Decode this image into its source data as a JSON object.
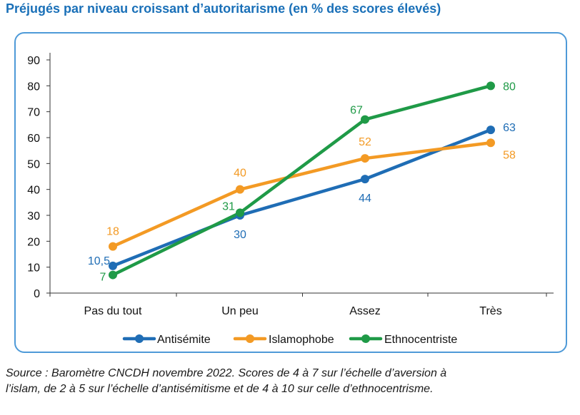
{
  "title": "Préjugés par niveau croissant d’autoritarisme (en % des scores élevés)",
  "source": {
    "line1": "Source : Baromètre CNCDH novembre 2022. Scores de 4 à 7 sur l’échelle d’aversion à",
    "line2": "l’islam, de 2 à 5 sur l’échelle d’antisémitisme et de 4 à 10 sur celle d’ethnocentrisme."
  },
  "chart_data": {
    "type": "line",
    "title": "Préjugés par niveau croissant d’autoritarisme (en % des scores élevés)",
    "categories": [
      "Pas du tout",
      "Un peu",
      "Assez",
      "Très"
    ],
    "ylim": [
      0,
      90
    ],
    "yticks": [
      0,
      10,
      20,
      30,
      40,
      50,
      60,
      70,
      80,
      90
    ],
    "grid": false,
    "legend_position": "bottom",
    "series": [
      {
        "name": "Antisémite",
        "color": "#1f6db5",
        "values": [
          10.5,
          30,
          44,
          63
        ],
        "labels": [
          "10,5",
          "30",
          "44",
          "63"
        ]
      },
      {
        "name": "Islamophobe",
        "color": "#f39a24",
        "values": [
          18,
          40,
          52,
          58
        ],
        "labels": [
          "18",
          "40",
          "52",
          "58"
        ]
      },
      {
        "name": "Ethnocentriste",
        "color": "#1f9a47",
        "values": [
          7,
          31,
          67,
          80
        ],
        "labels": [
          "7",
          "31",
          "67",
          "80"
        ]
      }
    ]
  }
}
